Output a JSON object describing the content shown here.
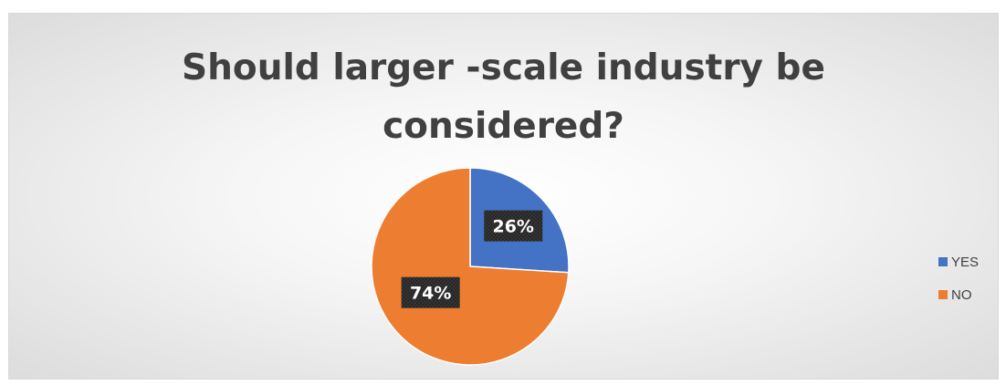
{
  "chart_data": {
    "type": "pie",
    "title_lines": [
      "Should larger -scale industry be",
      "considered?"
    ],
    "categories": [
      "YES",
      "NO"
    ],
    "values": [
      26,
      74
    ],
    "labels": [
      "26%",
      "74%"
    ],
    "colors": [
      "#4472c4",
      "#ed7d31"
    ],
    "label_box_color": "#262626",
    "legend_position": "right"
  }
}
